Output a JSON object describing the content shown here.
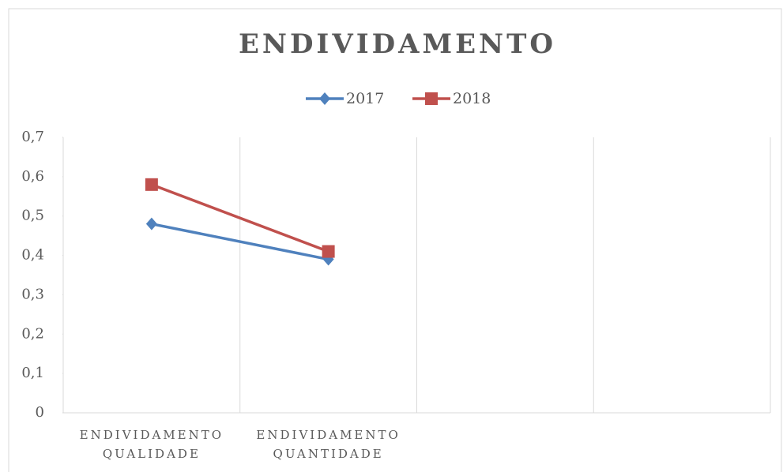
{
  "chart_data": {
    "type": "line",
    "title": "ENDIVIDAMENTO",
    "categories": [
      "ENDIVIDAMENTO QUALIDADE",
      "ENDIVIDAMENTO QUANTIDADE",
      null,
      null
    ],
    "series": [
      {
        "name": "2017",
        "color": "#4f81bd",
        "marker": "diamond",
        "values": [
          0.48,
          0.39,
          null,
          null
        ]
      },
      {
        "name": "2018",
        "color": "#c0504d",
        "marker": "square",
        "values": [
          0.58,
          0.41,
          null,
          null
        ]
      }
    ],
    "ylim": [
      0,
      0.7
    ],
    "yticks": [
      0,
      {
        "value": 0.1,
        "label": "0,1"
      },
      {
        "value": 0.2,
        "label": "0,2"
      },
      {
        "value": 0.3,
        "label": "0,3"
      },
      {
        "value": 0.4,
        "label": "0,4"
      },
      {
        "value": 0.5,
        "label": "0,5"
      },
      {
        "value": 0.6,
        "label": "0,6"
      },
      {
        "value": 0.7,
        "label": "0,7"
      }
    ],
    "legend": "top"
  }
}
